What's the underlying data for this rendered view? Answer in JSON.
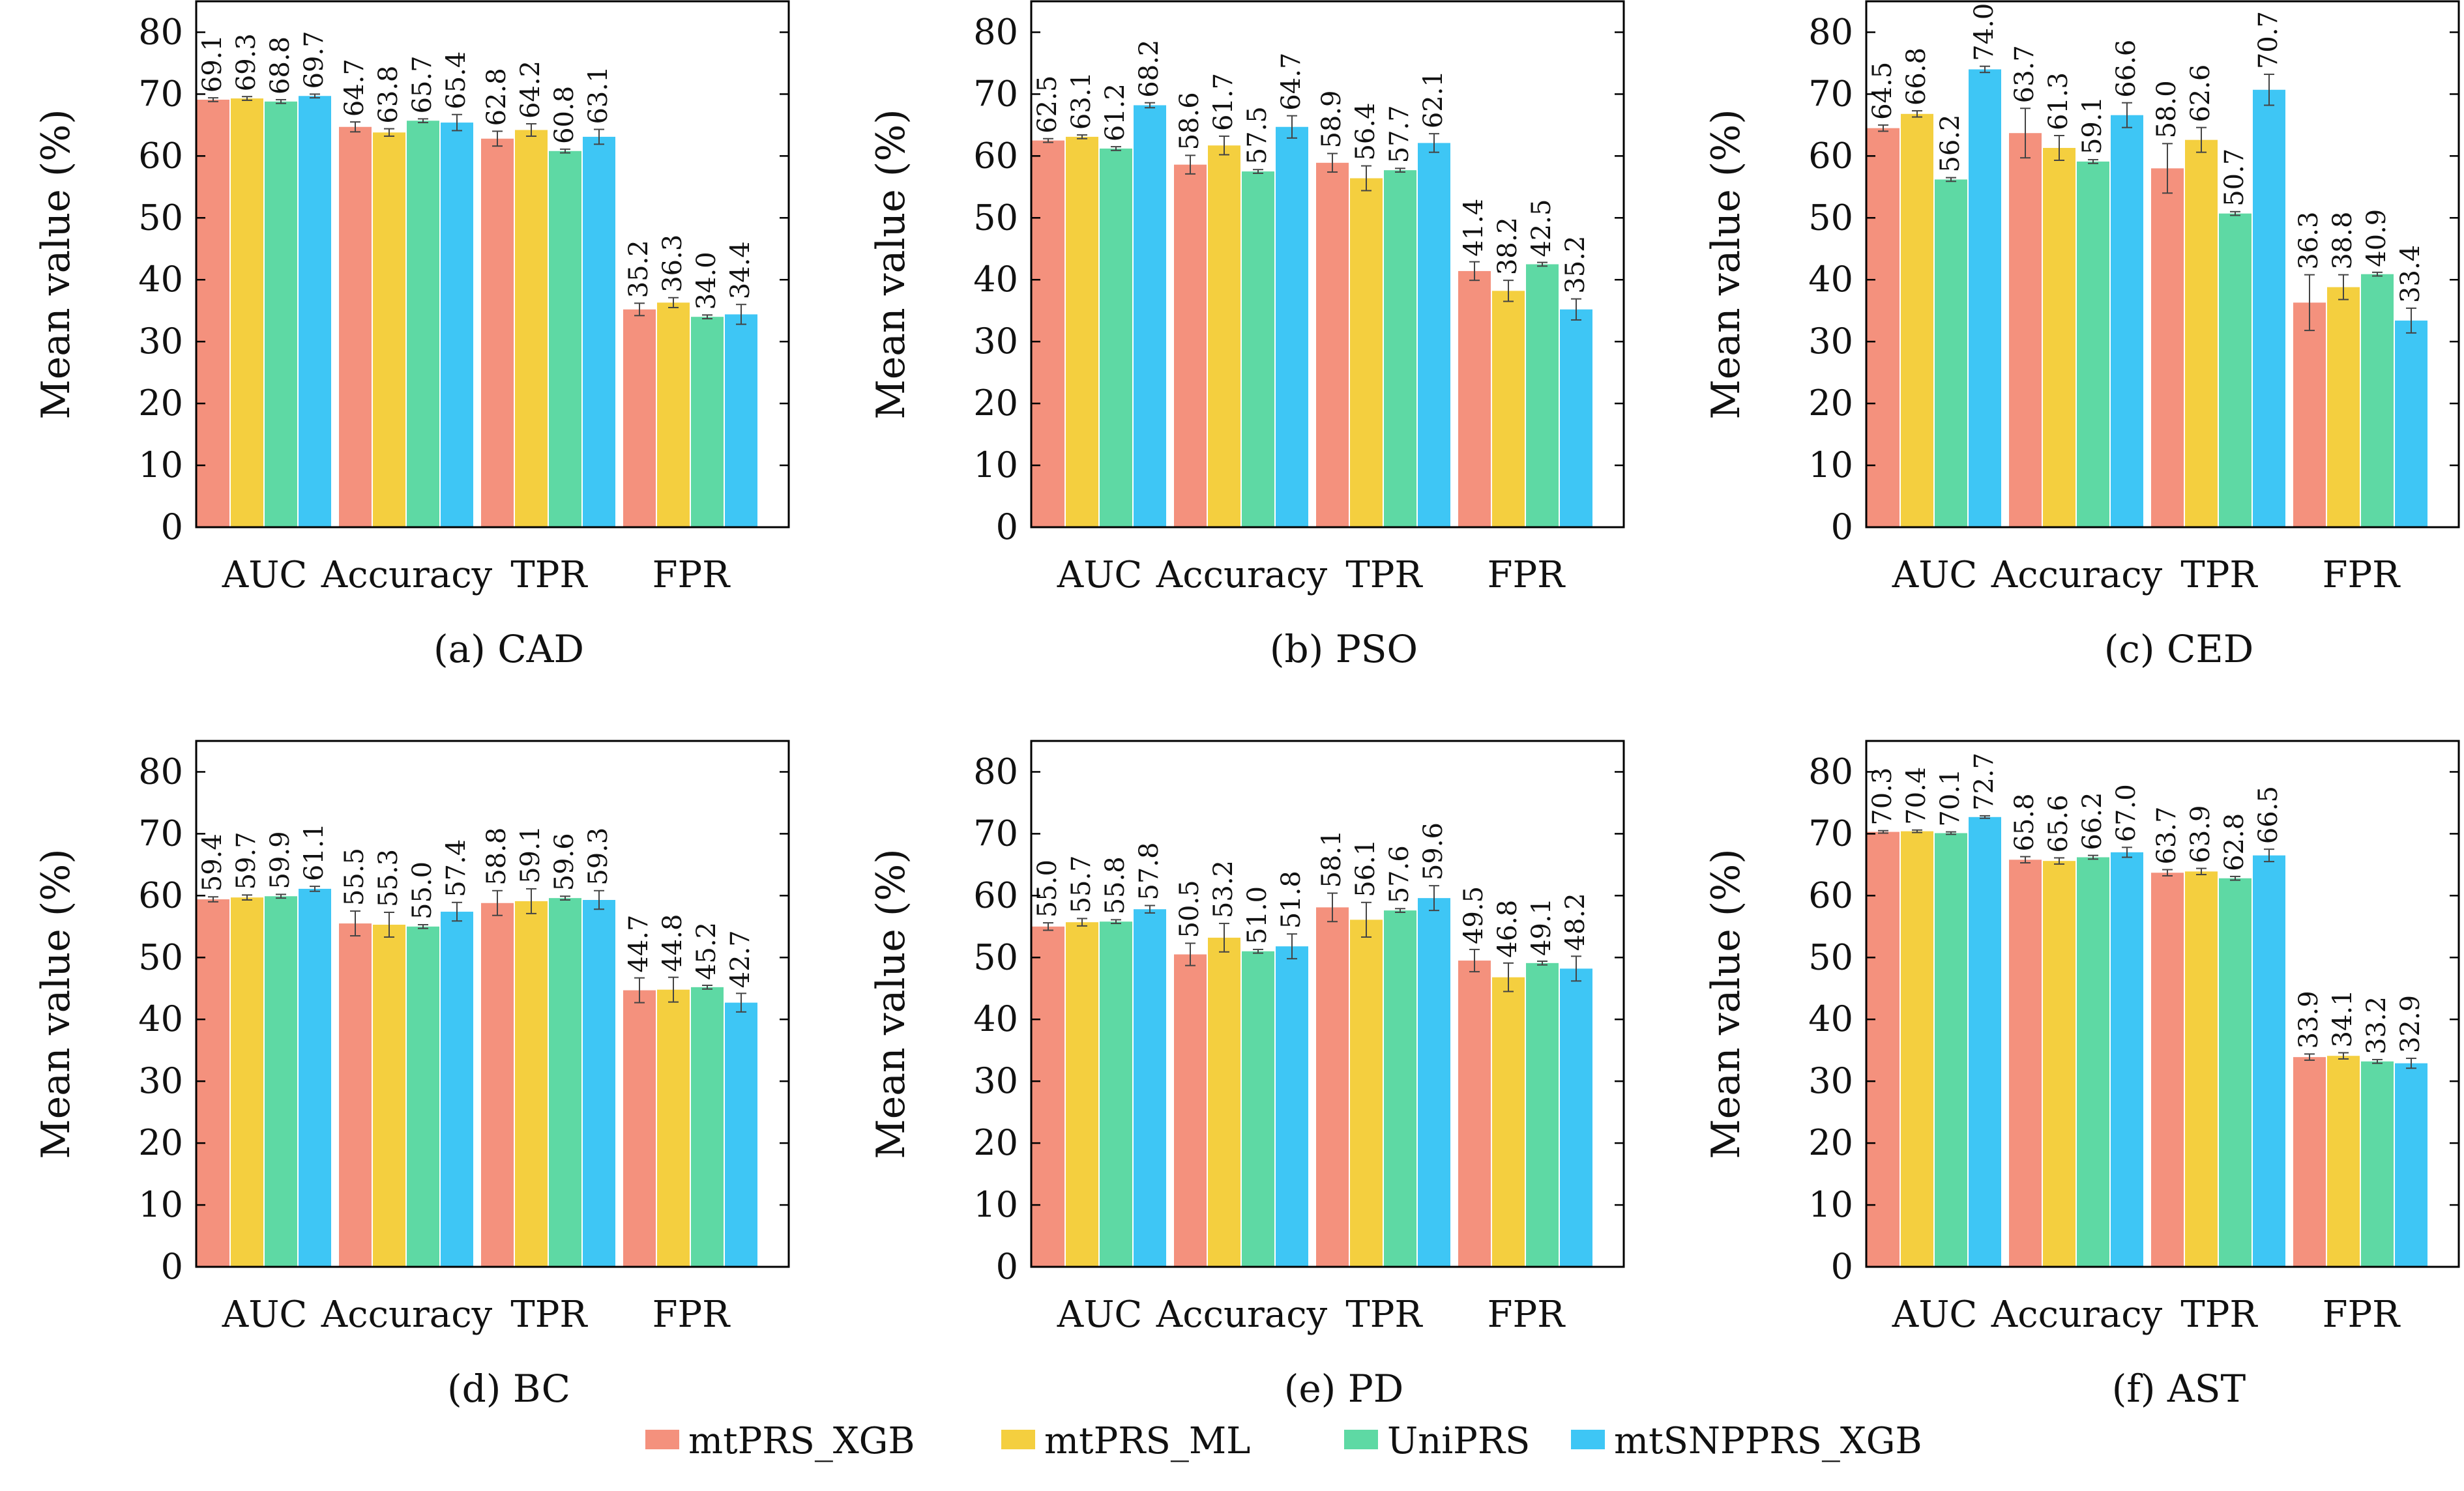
{
  "legend": {
    "position": "bottom-center",
    "items": [
      {
        "name": "mtPRS_XGB",
        "color": "#F4917D"
      },
      {
        "name": "mtPRS_ML",
        "color": "#F4CF3F"
      },
      {
        "name": "UniPRS",
        "color": "#5ED9A4"
      },
      {
        "name": "mtSNPPRS_XGB",
        "color": "#3EC6F5"
      }
    ]
  },
  "chart_data": [
    {
      "type": "bar",
      "caption": "(a) CAD",
      "ylabel": "Mean value (%)",
      "ylim": [
        0,
        80
      ],
      "yticks": [
        0,
        10,
        20,
        30,
        40,
        50,
        60,
        70,
        80
      ],
      "categories": [
        "AUC",
        "Accuracy",
        "TPR",
        "FPR"
      ],
      "series": [
        {
          "name": "mtPRS_XGB",
          "values": [
            69.1,
            64.7,
            62.8,
            35.2
          ],
          "errors": [
            0.3,
            0.8,
            1.2,
            1.0
          ]
        },
        {
          "name": "mtPRS_ML",
          "values": [
            69.3,
            63.8,
            64.2,
            36.3
          ],
          "errors": [
            0.3,
            0.6,
            1.0,
            0.8
          ]
        },
        {
          "name": "UniPRS",
          "values": [
            68.8,
            65.7,
            60.8,
            34.0
          ],
          "errors": [
            0.3,
            0.3,
            0.3,
            0.3
          ]
        },
        {
          "name": "mtSNPPRS_XGB",
          "values": [
            69.7,
            65.4,
            63.1,
            34.4
          ],
          "errors": [
            0.3,
            1.3,
            1.2,
            1.6
          ]
        }
      ]
    },
    {
      "type": "bar",
      "caption": "(b) PSO",
      "ylabel": "Mean value (%)",
      "ylim": [
        0,
        80
      ],
      "yticks": [
        0,
        10,
        20,
        30,
        40,
        50,
        60,
        70,
        80
      ],
      "categories": [
        "AUC",
        "Accuracy",
        "TPR",
        "FPR"
      ],
      "series": [
        {
          "name": "mtPRS_XGB",
          "values": [
            62.5,
            58.6,
            58.9,
            41.4
          ],
          "errors": [
            0.3,
            1.5,
            1.5,
            1.5
          ]
        },
        {
          "name": "mtPRS_ML",
          "values": [
            63.1,
            61.7,
            56.4,
            38.2
          ],
          "errors": [
            0.3,
            1.5,
            2.0,
            1.7
          ]
        },
        {
          "name": "UniPRS",
          "values": [
            61.2,
            57.5,
            57.7,
            42.5
          ],
          "errors": [
            0.3,
            0.3,
            0.3,
            0.3
          ]
        },
        {
          "name": "mtSNPPRS_XGB",
          "values": [
            68.2,
            64.7,
            62.1,
            35.2
          ],
          "errors": [
            0.4,
            1.8,
            1.5,
            1.7
          ]
        }
      ]
    },
    {
      "type": "bar",
      "caption": "(c) CED",
      "ylabel": "Mean value (%)",
      "ylim": [
        0,
        80
      ],
      "yticks": [
        0,
        10,
        20,
        30,
        40,
        50,
        60,
        70,
        80
      ],
      "categories": [
        "AUC",
        "Accuracy",
        "TPR",
        "FPR"
      ],
      "series": [
        {
          "name": "mtPRS_XGB",
          "values": [
            64.5,
            63.7,
            58.0,
            36.3
          ],
          "errors": [
            0.5,
            4.0,
            4.0,
            4.5
          ]
        },
        {
          "name": "mtPRS_ML",
          "values": [
            66.8,
            61.3,
            62.6,
            38.8
          ],
          "errors": [
            0.5,
            2.0,
            2.0,
            2.0
          ]
        },
        {
          "name": "UniPRS",
          "values": [
            56.2,
            59.1,
            50.7,
            40.9
          ],
          "errors": [
            0.3,
            0.3,
            0.3,
            0.3
          ]
        },
        {
          "name": "mtSNPPRS_XGB",
          "values": [
            74.0,
            66.6,
            70.7,
            33.4
          ],
          "errors": [
            0.5,
            2.0,
            2.5,
            2.0
          ]
        }
      ]
    },
    {
      "type": "bar",
      "caption": "(d) BC",
      "ylabel": "Mean value (%)",
      "ylim": [
        0,
        80
      ],
      "yticks": [
        0,
        10,
        20,
        30,
        40,
        50,
        60,
        70,
        80
      ],
      "categories": [
        "AUC",
        "Accuracy",
        "TPR",
        "FPR"
      ],
      "series": [
        {
          "name": "mtPRS_XGB",
          "values": [
            59.4,
            55.5,
            58.8,
            44.7
          ],
          "errors": [
            0.4,
            2.0,
            2.0,
            2.0
          ]
        },
        {
          "name": "mtPRS_ML",
          "values": [
            59.7,
            55.3,
            59.1,
            44.8
          ],
          "errors": [
            0.4,
            2.0,
            2.0,
            2.0
          ]
        },
        {
          "name": "UniPRS",
          "values": [
            59.9,
            55.0,
            59.6,
            45.2
          ],
          "errors": [
            0.3,
            0.3,
            0.3,
            0.3
          ]
        },
        {
          "name": "mtSNPPRS_XGB",
          "values": [
            61.1,
            57.4,
            59.3,
            42.7
          ],
          "errors": [
            0.4,
            1.5,
            1.5,
            1.5
          ]
        }
      ]
    },
    {
      "type": "bar",
      "caption": "(e) PD",
      "ylabel": "Mean value (%)",
      "ylim": [
        0,
        80
      ],
      "yticks": [
        0,
        10,
        20,
        30,
        40,
        50,
        60,
        70,
        80
      ],
      "categories": [
        "AUC",
        "Accuracy",
        "TPR",
        "FPR"
      ],
      "series": [
        {
          "name": "mtPRS_XGB",
          "values": [
            55.0,
            50.5,
            58.1,
            49.5
          ],
          "errors": [
            0.6,
            1.8,
            2.3,
            1.8
          ]
        },
        {
          "name": "mtPRS_ML",
          "values": [
            55.7,
            53.2,
            56.1,
            46.8
          ],
          "errors": [
            0.6,
            2.3,
            2.8,
            2.3
          ]
        },
        {
          "name": "UniPRS",
          "values": [
            55.8,
            51.0,
            57.6,
            49.1
          ],
          "errors": [
            0.3,
            0.3,
            0.3,
            0.3
          ]
        },
        {
          "name": "mtSNPPRS_XGB",
          "values": [
            57.8,
            51.8,
            59.6,
            48.2
          ],
          "errors": [
            0.6,
            2.0,
            2.0,
            2.0
          ]
        }
      ]
    },
    {
      "type": "bar",
      "caption": "(f) AST",
      "ylabel": "Mean value (%)",
      "ylim": [
        0,
        80
      ],
      "yticks": [
        0,
        10,
        20,
        30,
        40,
        50,
        60,
        70,
        80
      ],
      "categories": [
        "AUC",
        "Accuracy",
        "TPR",
        "FPR"
      ],
      "series": [
        {
          "name": "mtPRS_XGB",
          "values": [
            70.3,
            65.8,
            63.7,
            33.9
          ],
          "errors": [
            0.2,
            0.5,
            0.5,
            0.5
          ]
        },
        {
          "name": "mtPRS_ML",
          "values": [
            70.4,
            65.6,
            63.9,
            34.1
          ],
          "errors": [
            0.2,
            0.5,
            0.5,
            0.5
          ]
        },
        {
          "name": "UniPRS",
          "values": [
            70.1,
            66.2,
            62.8,
            33.2
          ],
          "errors": [
            0.2,
            0.3,
            0.3,
            0.3
          ]
        },
        {
          "name": "mtSNPPRS_XGB",
          "values": [
            72.7,
            67.0,
            66.5,
            32.9
          ],
          "errors": [
            0.2,
            0.8,
            1.0,
            0.8
          ]
        }
      ]
    }
  ]
}
